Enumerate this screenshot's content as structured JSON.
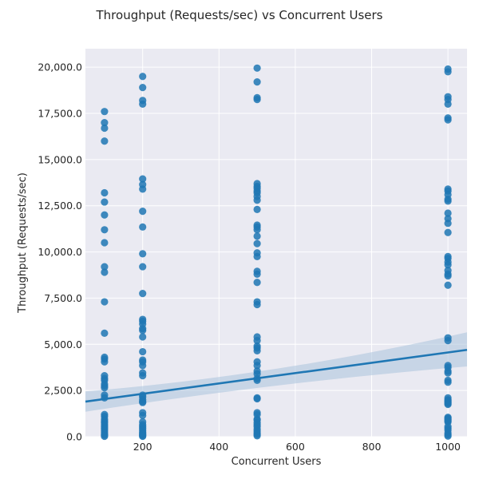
{
  "chart_data": {
    "type": "scatter",
    "title": "Throughput (Requests/sec) vs Concurrent Users",
    "xlabel": "Concurrent Users",
    "ylabel": "Throughput (Requests/sec)",
    "xlim": [
      50,
      1050
    ],
    "ylim": [
      0,
      21000
    ],
    "x_ticks": [
      200,
      400,
      600,
      800,
      1000
    ],
    "x_tick_labels": [
      "200",
      "400",
      "600",
      "800",
      "1000"
    ],
    "y_ticks": [
      0,
      2500,
      5000,
      7500,
      10000,
      12500,
      15000,
      17500,
      20000
    ],
    "y_tick_labels": [
      "0.0",
      "2,500.0",
      "5,000.0",
      "7,500.0",
      "10,000.0",
      "12,500.0",
      "15,000.0",
      "17,500.0",
      "20,000.0"
    ],
    "grid": true,
    "colors": {
      "background": "#eaeaf2",
      "grid": "#ffffff",
      "point": "#1f77b4",
      "line": "#1f77b4",
      "band": "#a9c3dd"
    },
    "regression": {
      "x_start": 50,
      "y_start": 1900,
      "x_end": 1050,
      "y_end": 4700,
      "ci_lower_start": 1350,
      "ci_upper_start": 2450,
      "ci_lower_mid": 2950,
      "ci_upper_mid": 3300,
      "ci_lower_end": 3800,
      "ci_upper_end": 5650
    },
    "series": [
      {
        "x": 100,
        "values": [
          17600,
          17000,
          16700,
          16000,
          13200,
          12700,
          12000,
          11200,
          10500,
          9200,
          8900,
          7300,
          5600,
          4300,
          4200,
          4050,
          3300,
          3150,
          3050,
          2850,
          2750,
          2650,
          2250,
          2100,
          1200,
          1100,
          950,
          850,
          750,
          650,
          550,
          450,
          350,
          250,
          150,
          80,
          20
        ]
      },
      {
        "x": 200,
        "values": [
          19500,
          18900,
          18200,
          18000,
          13950,
          13650,
          13400,
          12200,
          11350,
          9900,
          9200,
          7750,
          6350,
          6250,
          6100,
          5850,
          5750,
          5400,
          4600,
          4150,
          4050,
          3850,
          3450,
          3300,
          2250,
          2150,
          2000,
          1900,
          1850,
          1300,
          1150,
          800,
          650,
          550,
          450,
          350,
          250,
          180,
          120,
          60,
          20
        ]
      },
      {
        "x": 500,
        "values": [
          19950,
          19200,
          18350,
          18250,
          13700,
          13550,
          13450,
          13300,
          13200,
          13000,
          12800,
          12300,
          11450,
          11350,
          11200,
          10850,
          10450,
          9950,
          9750,
          8950,
          8800,
          8350,
          7300,
          7150,
          5400,
          5200,
          4900,
          4800,
          4650,
          4050,
          3850,
          3550,
          3400,
          3150,
          3050,
          2100,
          2050,
          1300,
          1200,
          950,
          900,
          750,
          650,
          550,
          400,
          300,
          200,
          120,
          50
        ]
      },
      {
        "x": 1000,
        "values": [
          19900,
          19750,
          18400,
          18250,
          18000,
          17250,
          17150,
          13400,
          13300,
          13100,
          12850,
          12750,
          12100,
          11800,
          11550,
          11050,
          9750,
          9650,
          9450,
          9300,
          9000,
          8800,
          8700,
          8200,
          5350,
          5200,
          3850,
          3750,
          3550,
          3450,
          3050,
          2950,
          2100,
          2000,
          1950,
          1900,
          1850,
          1800,
          1750,
          1050,
          1000,
          950,
          900,
          850,
          800,
          550,
          450,
          350,
          200,
          100,
          30
        ]
      }
    ]
  }
}
